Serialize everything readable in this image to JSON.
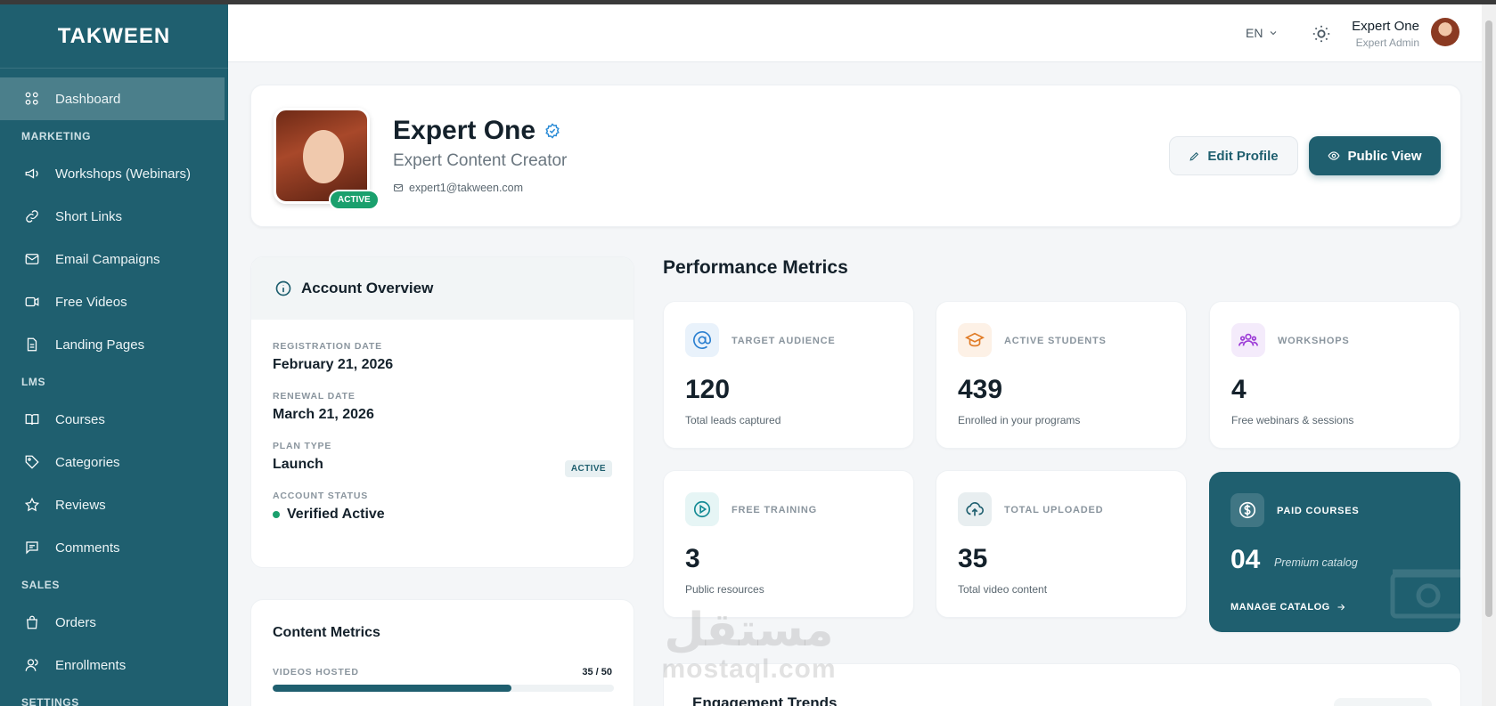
{
  "app": {
    "brand": "TAKWEEN"
  },
  "sidebar": {
    "dashboard": {
      "label": "Dashboard",
      "icon": "grid-icon"
    },
    "sections": [
      {
        "title": "MARKETING",
        "items": [
          {
            "label": "Workshops (Webinars)",
            "icon": "megaphone-icon"
          },
          {
            "label": "Short Links",
            "icon": "link-icon"
          },
          {
            "label": "Email Campaigns",
            "icon": "mail-icon"
          },
          {
            "label": "Free Videos",
            "icon": "video-icon"
          },
          {
            "label": "Landing Pages",
            "icon": "file-icon"
          }
        ]
      },
      {
        "title": "LMS",
        "items": [
          {
            "label": "Courses",
            "icon": "book-icon"
          },
          {
            "label": "Categories",
            "icon": "tag-icon"
          },
          {
            "label": "Reviews",
            "icon": "star-icon"
          },
          {
            "label": "Comments",
            "icon": "comment-icon"
          }
        ]
      },
      {
        "title": "SALES",
        "items": [
          {
            "label": "Orders",
            "icon": "bag-icon"
          },
          {
            "label": "Enrollments",
            "icon": "users-icon"
          }
        ]
      },
      {
        "title": "SETTINGS",
        "items": []
      }
    ]
  },
  "header": {
    "language": "EN",
    "user_name": "Expert One",
    "user_role": "Expert Admin"
  },
  "profile": {
    "name": "Expert One",
    "subtitle": "Expert Content Creator",
    "email": "expert1@takween.com",
    "status": "ACTIVE",
    "edit_label": "Edit Profile",
    "public_label": "Public View"
  },
  "account": {
    "title": "Account Overview",
    "registration_label": "REGISTRATION DATE",
    "registration_value": "February 21, 2026",
    "renewal_label": "RENEWAL DATE",
    "renewal_value": "March 21, 2026",
    "plan_label": "PLAN TYPE",
    "plan_value": "Launch",
    "plan_badge": "ACTIVE",
    "status_label": "ACCOUNT STATUS",
    "status_value": "Verified Active"
  },
  "content_metrics": {
    "title": "Content Metrics",
    "videos_label": "VIDEOS HOSTED",
    "videos_count": "35 / 50",
    "videos_used": 35,
    "videos_limit": 50
  },
  "performance": {
    "title": "Performance Metrics",
    "cards": [
      {
        "label": "TARGET AUDIENCE",
        "value": "120",
        "sub": "Total leads captured",
        "icon": "at-icon",
        "color": "#2a7fd0",
        "bg": "#e9f2fb"
      },
      {
        "label": "ACTIVE STUDENTS",
        "value": "439",
        "sub": "Enrolled in your programs",
        "icon": "graduation-cap-icon",
        "color": "#e07b25",
        "bg": "#fdf1e6"
      },
      {
        "label": "WORKSHOPS",
        "value": "4",
        "sub": "Free webinars & sessions",
        "icon": "group-icon",
        "color": "#9b3ad6",
        "bg": "#f4ebfb"
      },
      {
        "label": "FREE TRAINING",
        "value": "3",
        "sub": "Public resources",
        "icon": "play-circle-icon",
        "color": "#138a94",
        "bg": "#e6f5f5"
      },
      {
        "label": "TOTAL UPLOADED",
        "value": "35",
        "sub": "Total video content",
        "icon": "cloud-upload-icon",
        "color": "#1f5f6f",
        "bg": "#e8eef0"
      }
    ],
    "paid": {
      "label": "PAID COURSES",
      "value": "04",
      "sub": "Premium catalog",
      "link": "MANAGE CATALOG",
      "icon": "dollar-icon"
    }
  },
  "engagement": {
    "title": "Engagement Trends"
  },
  "watermark": {
    "arabic": "مستقل",
    "latin": "mostaql.com"
  }
}
